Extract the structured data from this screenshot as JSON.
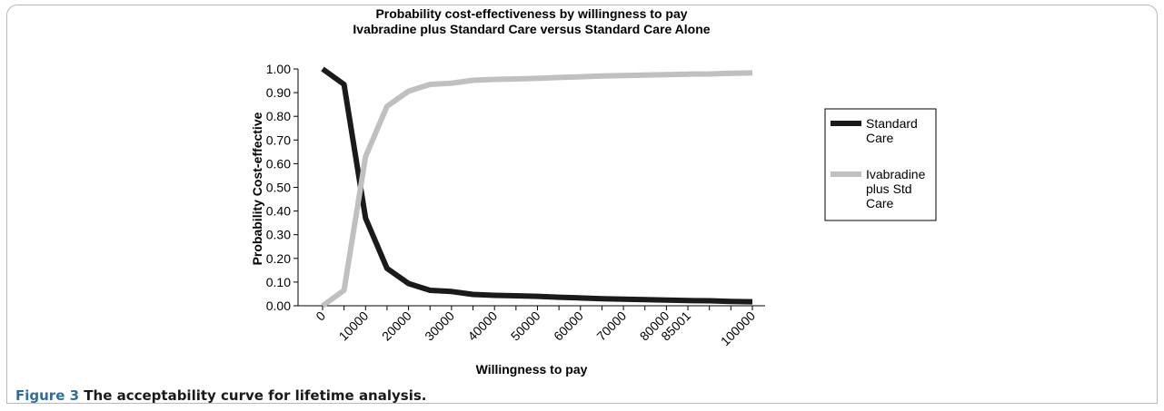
{
  "caption": {
    "label": "Figure 3",
    "text": "The acceptability curve for lifetime analysis."
  },
  "chart_data": {
    "type": "line",
    "title_lines": [
      "Probability cost-effectiveness by willingness to pay",
      "Ivabradine plus Standard Care versus Standard Care Alone"
    ],
    "xlabel": "Willingness to pay",
    "ylabel": "Probability Cost-effective",
    "ylim": [
      0,
      1
    ],
    "y_ticks": [
      "0.00",
      "0.10",
      "0.20",
      "0.30",
      "0.40",
      "0.50",
      "0.60",
      "0.70",
      "0.80",
      "0.90",
      "1.00"
    ],
    "x_tick_labels": [
      "0",
      "10000",
      "20000",
      "30000",
      "40000",
      "50000",
      "60000",
      "70000",
      "80000",
      "85001",
      "100000"
    ],
    "x": [
      0,
      5000,
      10000,
      15000,
      20000,
      25000,
      30000,
      35000,
      40000,
      45000,
      50000,
      55000,
      60000,
      65000,
      70000,
      75000,
      80000,
      85001,
      90000,
      95000,
      100000
    ],
    "grid": false,
    "legend_position": "right",
    "series": [
      {
        "name": "Standard Care",
        "legend_lines": [
          "Standard",
          "Care"
        ],
        "color": "#1a1a1a",
        "values": [
          1.0,
          0.935,
          0.37,
          0.158,
          0.094,
          0.065,
          0.06,
          0.048,
          0.044,
          0.042,
          0.04,
          0.036,
          0.033,
          0.03,
          0.028,
          0.026,
          0.024,
          0.022,
          0.021,
          0.018,
          0.017
        ]
      },
      {
        "name": "Ivabradine plus Std Care",
        "legend_lines": [
          "Ivabradine",
          "plus Std",
          "Care"
        ],
        "color": "#c0c0c0",
        "values": [
          0.0,
          0.065,
          0.63,
          0.842,
          0.906,
          0.935,
          0.94,
          0.952,
          0.956,
          0.958,
          0.96,
          0.964,
          0.967,
          0.97,
          0.972,
          0.974,
          0.976,
          0.978,
          0.979,
          0.982,
          0.983
        ]
      }
    ]
  }
}
